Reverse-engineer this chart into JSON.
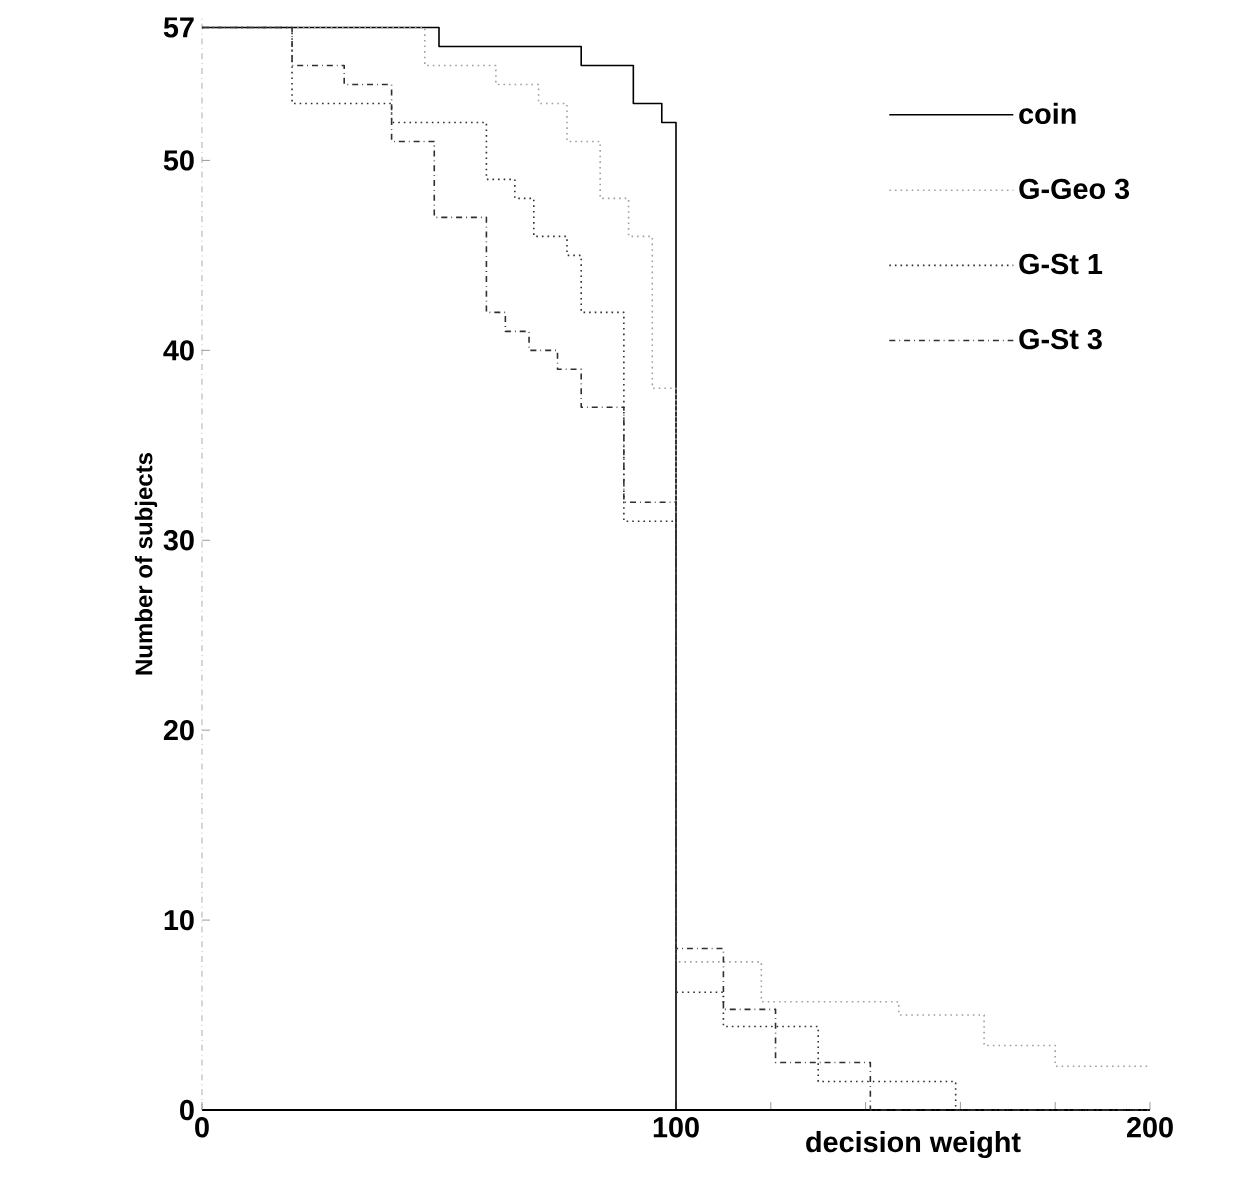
{
  "chart_data": {
    "type": "step",
    "xlabel": "decision weight",
    "ylabel": "Number of subjects",
    "xlim": [
      0,
      200
    ],
    "ylim": [
      0,
      57.5
    ],
    "xticks": [
      0,
      100,
      {
        "value": 120,
        "label": null
      },
      {
        "value": 140,
        "label": null
      },
      {
        "value": 160,
        "label": null
      },
      {
        "value": 180,
        "label": null
      },
      200
    ],
    "yticks": [
      0,
      10,
      20,
      30,
      40,
      50,
      57
    ],
    "legend": "top right",
    "grid": false,
    "series": [
      {
        "name": "coin",
        "color": "#000000",
        "line_style": "solid",
        "x": [
          0,
          50,
          80,
          91,
          97,
          100,
          200
        ],
        "values": [
          57,
          56,
          55,
          53,
          52,
          0,
          0
        ]
      },
      {
        "name": "G-Geo 3",
        "color": "#a0a0a0",
        "line_style": "dotted",
        "x": [
          0,
          47,
          62,
          71,
          77,
          84,
          90,
          95,
          100,
          118,
          147,
          165,
          180,
          200
        ],
        "values": [
          57,
          55,
          54,
          53,
          51,
          48,
          46,
          38,
          7.8,
          5.7,
          5,
          3.4,
          2.3,
          2.3
        ]
      },
      {
        "name": "G-St 1",
        "color": "#303030",
        "line_style": "dotted",
        "x": [
          0,
          19,
          40,
          60,
          66,
          70,
          77,
          80,
          89,
          100,
          110,
          130,
          159,
          200
        ],
        "values": [
          57,
          53,
          52,
          49,
          48,
          46,
          45,
          42,
          31,
          6.2,
          4.4,
          1.5,
          0,
          0
        ]
      },
      {
        "name": "G-St 3",
        "color": "#303030",
        "line_style": "dashed",
        "x": [
          0,
          19,
          30,
          40,
          49,
          60,
          64,
          69,
          75,
          80,
          89,
          100,
          110,
          121,
          141,
          200
        ],
        "values": [
          57,
          55,
          54,
          51,
          47,
          42,
          41,
          40,
          39,
          37,
          32,
          8.5,
          5.3,
          2.5,
          0,
          0
        ]
      }
    ]
  }
}
